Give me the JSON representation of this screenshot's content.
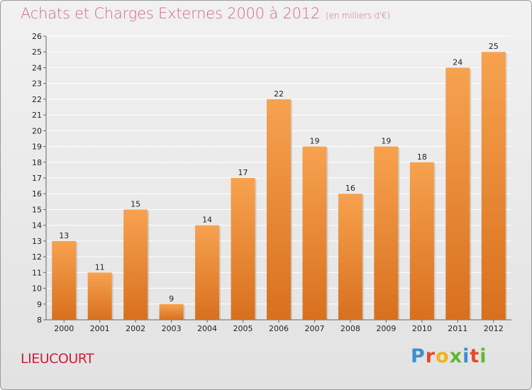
{
  "header": {
    "title": "Achats et Charges Externes 2000 à 2012",
    "unit": "(en milliers d'€)"
  },
  "footer": {
    "town": "LIEUCOURT",
    "logo_letters": [
      "P",
      "r",
      "o",
      "x",
      "i",
      "t",
      "i"
    ],
    "logo_colors": [
      "#3a8fd0",
      "#e24a2c",
      "#f3b21b",
      "#63b535",
      "#3a8fd0",
      "#e24a2c",
      "#63b535"
    ]
  },
  "colors": {
    "bar_top": "#f7a24f",
    "bar_bottom": "#d8701e",
    "grid": "#ffffff",
    "axis": "#666666"
  },
  "chart_data": {
    "type": "bar",
    "title": "Achats et Charges Externes 2000 à 2012",
    "subtitle": "(en milliers d'€)",
    "categories": [
      "2000",
      "2001",
      "2002",
      "2003",
      "2004",
      "2005",
      "2006",
      "2007",
      "2008",
      "2009",
      "2010",
      "2011",
      "2012"
    ],
    "values": [
      13,
      11,
      15,
      9,
      14,
      17,
      22,
      19,
      16,
      19,
      18,
      24,
      25
    ],
    "ylim": [
      8,
      26
    ],
    "yticks": [
      8,
      9,
      10,
      11,
      12,
      13,
      14,
      15,
      16,
      17,
      18,
      19,
      20,
      21,
      22,
      23,
      24,
      25,
      26
    ],
    "grid": true,
    "data_labels": true
  }
}
